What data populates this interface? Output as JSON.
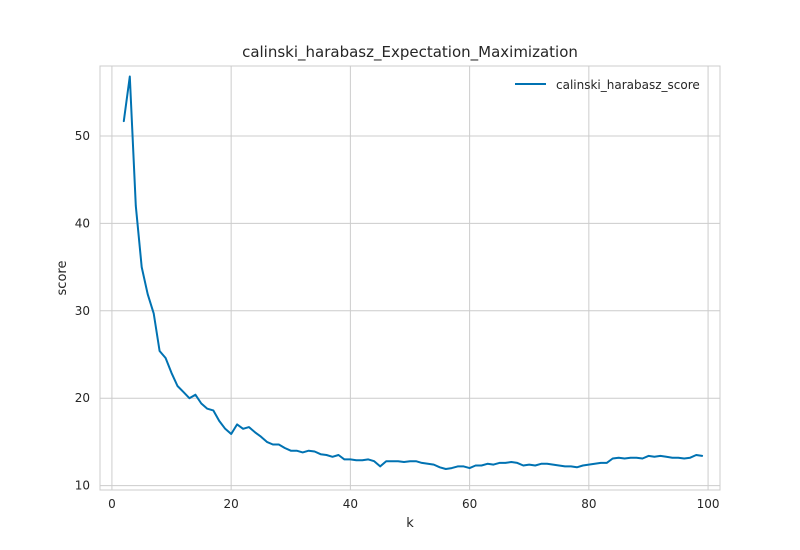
{
  "chart_data": {
    "type": "line",
    "title": "calinski_harabasz_Expectation_Maximization",
    "xlabel": "k",
    "ylabel": "score",
    "xlim": [
      -2,
      102
    ],
    "ylim": [
      9.5,
      58
    ],
    "xticks": [
      0,
      20,
      40,
      60,
      80,
      100
    ],
    "yticks": [
      10,
      20,
      30,
      40,
      50
    ],
    "grid": true,
    "legend_position": "top-right",
    "series": [
      {
        "name": "calinski_harabasz_score",
        "color": "#0072b2",
        "x": [
          2,
          3,
          4,
          5,
          6,
          7,
          8,
          9,
          10,
          11,
          12,
          13,
          14,
          15,
          16,
          17,
          18,
          19,
          20,
          21,
          22,
          23,
          24,
          25,
          26,
          27,
          28,
          29,
          30,
          31,
          32,
          33,
          34,
          35,
          36,
          37,
          38,
          39,
          40,
          41,
          42,
          43,
          44,
          45,
          46,
          47,
          48,
          49,
          50,
          51,
          52,
          53,
          54,
          55,
          56,
          57,
          58,
          59,
          60,
          61,
          62,
          63,
          64,
          65,
          66,
          67,
          68,
          69,
          70,
          71,
          72,
          73,
          74,
          75,
          76,
          77,
          78,
          79,
          80,
          81,
          82,
          83,
          84,
          85,
          86,
          87,
          88,
          89,
          90,
          91,
          92,
          93,
          94,
          95,
          96,
          97,
          98,
          99
        ],
        "y": [
          51.7,
          56.8,
          42.0,
          35.0,
          31.9,
          29.7,
          25.4,
          24.6,
          22.9,
          21.4,
          20.7,
          20.0,
          20.4,
          19.4,
          18.8,
          18.6,
          17.4,
          16.5,
          15.9,
          17.0,
          16.5,
          16.7,
          16.1,
          15.6,
          15.0,
          14.7,
          14.7,
          14.3,
          14.0,
          14.0,
          13.8,
          14.0,
          13.9,
          13.6,
          13.5,
          13.3,
          13.5,
          13.0,
          13.0,
          12.9,
          12.9,
          13.0,
          12.8,
          12.2,
          12.8,
          12.8,
          12.8,
          12.7,
          12.8,
          12.8,
          12.6,
          12.5,
          12.4,
          12.1,
          11.9,
          12.0,
          12.2,
          12.2,
          12.0,
          12.3,
          12.3,
          12.5,
          12.4,
          12.6,
          12.6,
          12.7,
          12.6,
          12.3,
          12.4,
          12.3,
          12.5,
          12.5,
          12.4,
          12.3,
          12.2,
          12.2,
          12.1,
          12.3,
          12.4,
          12.5,
          12.6,
          12.6,
          13.1,
          13.2,
          13.1,
          13.2,
          13.2,
          13.1,
          13.4,
          13.3,
          13.4,
          13.3,
          13.2,
          13.2,
          13.1,
          13.2,
          13.5,
          13.4
        ]
      }
    ]
  }
}
